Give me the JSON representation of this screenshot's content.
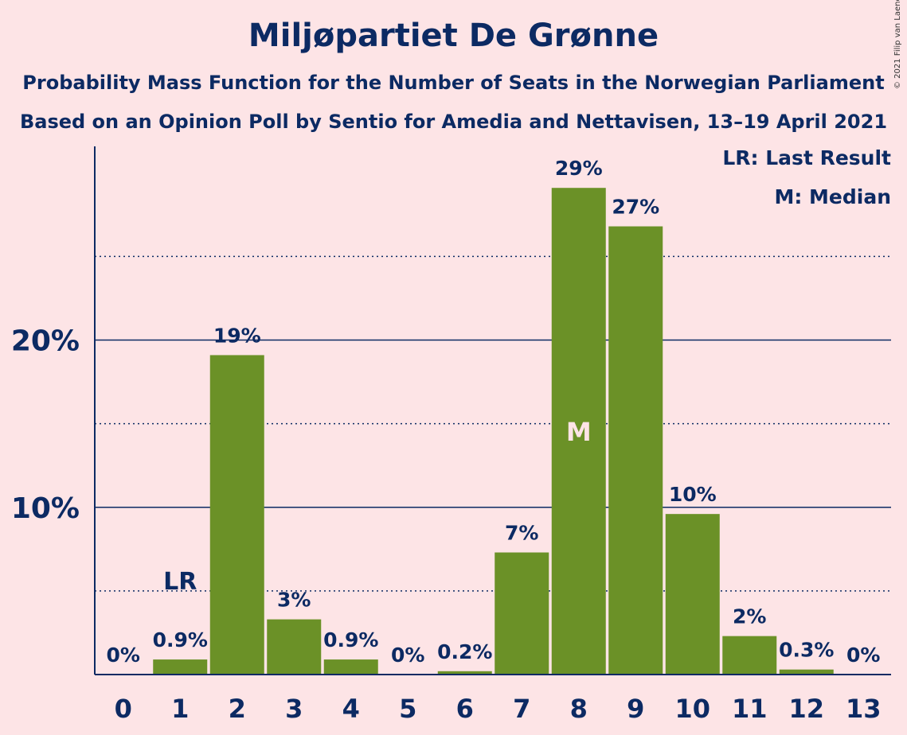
{
  "title": "Miljøpartiet De Grønne",
  "subtitle1": "Probability Mass Function for the Number of Seats in the Norwegian Parliament",
  "subtitle2": "Based on an Opinion Poll by Sentio for Amedia and Nettavisen, 13–19 April 2021",
  "copyright": "© 2021 Filip van Laenen",
  "legend": {
    "last_result": "LR: Last Result",
    "median": "M: Median"
  },
  "colors": {
    "background": "#fde4e6",
    "bar": "#6b9127",
    "text": "#0c2a63",
    "median_label": "#fde4e6"
  },
  "chart_data": {
    "type": "bar",
    "categories": [
      "0",
      "1",
      "2",
      "3",
      "4",
      "5",
      "6",
      "7",
      "8",
      "9",
      "10",
      "11",
      "12",
      "13"
    ],
    "values": [
      0,
      0.9,
      19.1,
      3.3,
      0.9,
      0,
      0.2,
      7.3,
      29.1,
      26.8,
      9.6,
      2.3,
      0.3,
      0
    ],
    "value_labels": [
      "0%",
      "0.9%",
      "19%",
      "3%",
      "0.9%",
      "0%",
      "0.2%",
      "7%",
      "29%",
      "27%",
      "10%",
      "2%",
      "0.3%",
      "0%"
    ],
    "y_ticks": [
      10,
      20
    ],
    "y_tick_labels": [
      "10%",
      "20%"
    ],
    "minor_gridlines": [
      5,
      15,
      25
    ],
    "ylim": [
      0,
      31.7
    ],
    "last_result_index": 1,
    "last_result_label": "LR",
    "median_index": 8,
    "median_label": "M"
  }
}
